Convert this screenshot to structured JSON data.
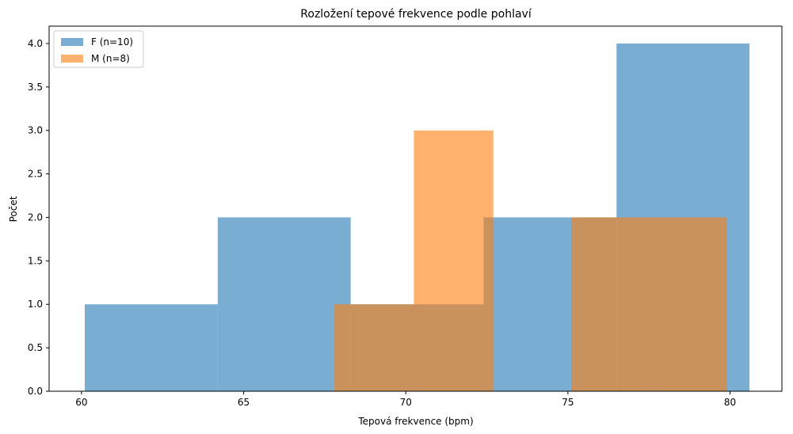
{
  "chart_data": {
    "type": "bar",
    "title": "Rozložení tepové frekvence podle pohlaví",
    "xlabel": "Tepová frekvence (bpm)",
    "ylabel": "Počet",
    "xlim": [
      59.0,
      81.6
    ],
    "ylim": [
      0,
      4.2
    ],
    "xticks": [
      60,
      65,
      70,
      75,
      80
    ],
    "xtick_labels": [
      "60",
      "65",
      "70",
      "75",
      "80"
    ],
    "yticks": [
      0.0,
      0.5,
      1.0,
      1.5,
      2.0,
      2.5,
      3.0,
      3.5,
      4.0
    ],
    "ytick_labels": [
      "0.0",
      "0.5",
      "1.0",
      "1.5",
      "2.0",
      "2.5",
      "3.0",
      "3.5",
      "4.0"
    ],
    "legend_position": "top-left",
    "series": [
      {
        "name": "F (n=10)",
        "color": "#1f77b4",
        "opacity": 0.6,
        "bins": [
          {
            "x0": 60.1,
            "x1": 64.2,
            "count": 1
          },
          {
            "x0": 64.2,
            "x1": 68.3,
            "count": 2
          },
          {
            "x0": 68.3,
            "x1": 72.4,
            "count": 1
          },
          {
            "x0": 72.4,
            "x1": 76.5,
            "count": 2
          },
          {
            "x0": 76.5,
            "x1": 80.6,
            "count": 4
          }
        ]
      },
      {
        "name": "M (n=8)",
        "color": "#ff7f0e",
        "opacity": 0.6,
        "bins": [
          {
            "x0": 67.8,
            "x1": 70.25,
            "count": 1
          },
          {
            "x0": 70.25,
            "x1": 72.7,
            "count": 3
          },
          {
            "x0": 72.7,
            "x1": 75.1,
            "count": 0
          },
          {
            "x0": 75.1,
            "x1": 77.5,
            "count": 2
          },
          {
            "x0": 77.5,
            "x1": 79.9,
            "count": 2
          }
        ]
      }
    ]
  }
}
